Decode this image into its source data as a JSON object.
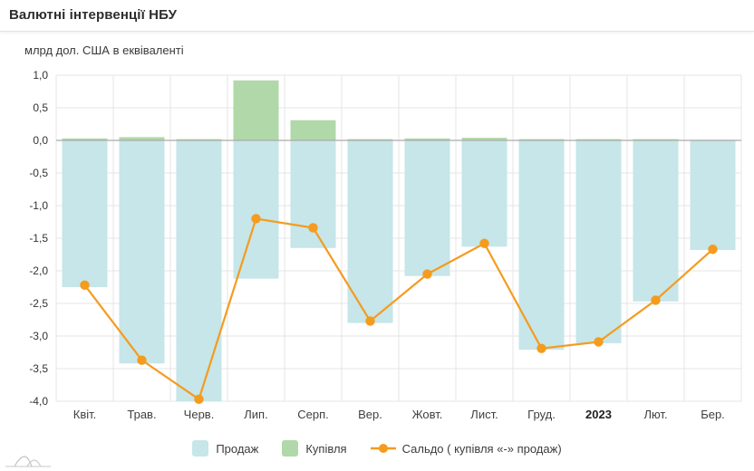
{
  "header": {
    "title": "Валютні інтервенції НБУ"
  },
  "chart_data": {
    "type": "bar",
    "subtype": "bar-line-combo",
    "title": "Валютні інтервенції НБУ",
    "unit_label": "млрд дол. США в еквіваленті",
    "categories": [
      "Квіт.",
      "Трав.",
      "Черв.",
      "Лип.",
      "Серп.",
      "Вер.",
      "Жовт.",
      "Лист.",
      "Груд.",
      "2023",
      "Лют.",
      "Бер."
    ],
    "bold_category": "2023",
    "series": [
      {
        "name": "Продаж",
        "type": "bar",
        "color": "#c6e6e9",
        "values": [
          -2.25,
          -3.42,
          -4.0,
          -2.12,
          -1.65,
          -2.8,
          -2.08,
          -1.63,
          -3.21,
          -3.11,
          -2.47,
          -1.68
        ]
      },
      {
        "name": "Купівля",
        "type": "bar",
        "color": "#b0d8a8",
        "values": [
          0.03,
          0.05,
          0.02,
          0.92,
          0.31,
          0.02,
          0.03,
          0.04,
          0.02,
          0.02,
          0.02,
          0.01
        ]
      },
      {
        "name": "Сальдо ( купівля «-» продаж)",
        "type": "line",
        "color": "#f59b1e",
        "values": [
          -2.22,
          -3.37,
          -3.97,
          -1.2,
          -1.34,
          -2.77,
          -2.05,
          -1.58,
          -3.19,
          -3.09,
          -2.45,
          -1.67
        ]
      }
    ],
    "ylim": [
      -4.0,
      1.0
    ],
    "ytick_step": 0.5,
    "decimal_separator": ",",
    "grid": true,
    "legend_position": "bottom"
  },
  "colors": {
    "grid_line": "#e4e4e4",
    "zero_line": "#ababab",
    "axis_text": "#333333",
    "x_label_text": "#3f3f3f"
  }
}
